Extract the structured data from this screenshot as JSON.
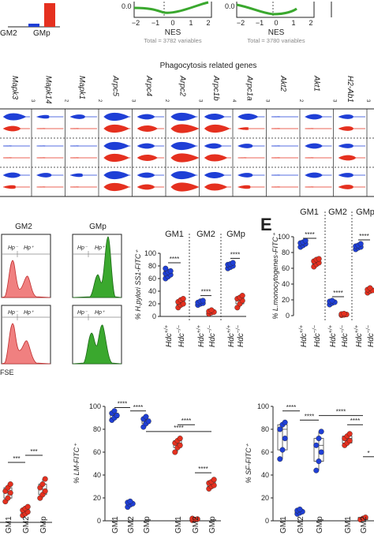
{
  "top": {
    "bar_labels": [
      "GM2",
      "GMp"
    ],
    "nes_panel_1": {
      "xlabel": "NES",
      "ticks": [
        "−2",
        "−1",
        "0",
        "1",
        "2"
      ],
      "ytick": "0.0",
      "total": "Total = 3782 variables"
    },
    "nes_panel_2": {
      "xlabel": "NES",
      "ticks": [
        "−2",
        "−1",
        "0",
        "1",
        "2"
      ],
      "ytick": "0.0",
      "total": "Total = 3780 variables"
    }
  },
  "violin": {
    "title": "Phagocytosis related genes",
    "genes": [
      "Mapk3",
      "Mapk14",
      "Mapk1",
      "Arpc5",
      "Arpc4",
      "Arpc2",
      "Arpc1b",
      "Arpc1a",
      "Akt2",
      "Akt1",
      "H2-Ab1"
    ],
    "scale_ticks": [
      "3",
      "2",
      "2",
      "3",
      "2",
      "3",
      "4",
      "3",
      "2",
      "3",
      "3"
    ]
  },
  "flow": {
    "headers": [
      "GM2",
      "GMp"
    ],
    "gate_neg": "Hp⁻",
    "gate_pos": "Hp⁺",
    "xlabel": "FSE"
  },
  "colors": {
    "blue": "#1f3fd6",
    "red": "#e5301f",
    "green": "#3aa82e",
    "salmon": "#f08080"
  },
  "chart_data": [
    {
      "type": "scatter",
      "panel": "D",
      "ylabel": "% H.pylori SS1-FITC⁺",
      "group_labels": [
        "GM1",
        "GM2",
        "GMp"
      ],
      "categories": [
        "Hdc+/+",
        "Hdc−/−",
        "Hdc+/+",
        "Hdc−/−",
        "Hdc+/+",
        "Hdc−/−"
      ],
      "xtick_base": "Hdc",
      "xtick_sup": [
        "+/+",
        "−/−",
        "+/+",
        "−/−",
        "+/+",
        "−/−"
      ],
      "ylim": [
        0,
        100
      ],
      "yticks": [
        "0",
        "20",
        "40",
        "60",
        "80",
        "100"
      ],
      "series": [
        {
          "values": [
            [
              60,
              63,
              66,
              68,
              70,
              72,
              76
            ],
            [
              14,
              18,
              20,
              23,
              26,
              28
            ],
            [
              18,
              20,
              21,
              22,
              24,
              25
            ],
            [
              4,
              6,
              7,
              8,
              10
            ],
            [
              76,
              78,
              80,
              82,
              83,
              85
            ],
            [
              14,
              20,
              25,
              28,
              30,
              33
            ]
          ]
        }
      ],
      "significance": [
        "****",
        "****",
        "****"
      ]
    },
    {
      "type": "scatter",
      "panel": "E",
      "panel_letter": "E",
      "ylabel": "% L.monocytogenes-FITC⁺",
      "group_labels": [
        "GM1",
        "GM2",
        "GMp"
      ],
      "xtick_base": "Hdc",
      "xtick_sup": [
        "+/+",
        "−/−",
        "+/+",
        "−/−",
        "+/+",
        "−/−"
      ],
      "ylim": [
        0,
        100
      ],
      "yticks": [
        "0",
        "20",
        "40",
        "60",
        "80",
        "100"
      ],
      "series": [
        {
          "values": [
            [
              87,
              89,
              91,
              92,
              93,
              95
            ],
            [
              62,
              65,
              67,
              69,
              71,
              72
            ],
            [
              14,
              16,
              17,
              18,
              19
            ],
            [
              0.5,
              1,
              1.5,
              2,
              2.5
            ],
            [
              84,
              86,
              87,
              88,
              89,
              91
            ],
            [
              29,
              31,
              32,
              33,
              35
            ]
          ]
        }
      ],
      "significance": [
        "****",
        "****",
        "****"
      ]
    },
    {
      "type": "scatter",
      "panel": "F1",
      "categories": [
        "GM1",
        "GM2",
        "GMp"
      ],
      "series": [
        {
          "values": [
            [
              12,
              14,
              17,
              18,
              20,
              22
            ],
            [
              4,
              5,
              6,
              7,
              8,
              9
            ],
            [
              14,
              16,
              18,
              20,
              22,
              25
            ]
          ]
        }
      ],
      "significance": [
        "***",
        "***"
      ]
    },
    {
      "type": "scatter",
      "panel": "F2",
      "ylabel": "% LM-FITC⁺",
      "categories": [
        "GM1",
        "GM2",
        "GMp",
        "GM1",
        "GM2",
        "GMp"
      ],
      "ylim": [
        0,
        100
      ],
      "yticks": [
        "0",
        "20",
        "40",
        "60",
        "80",
        "100"
      ],
      "series": [
        {
          "values": [
            [
              88,
              90,
              92,
              94,
              96
            ],
            [
              12,
              14,
              15,
              16,
              17
            ],
            [
              82,
              85,
              87,
              89,
              91
            ],
            [
              60,
              64,
              66,
              68,
              70,
              72
            ],
            [
              0.5,
              1,
              1.5,
              2
            ],
            [
              28,
              30,
              31,
              33,
              34,
              36
            ]
          ]
        }
      ],
      "significance": [
        "****",
        "****",
        "****",
        "****",
        "****"
      ]
    },
    {
      "type": "scatter",
      "panel": "F3",
      "ylabel": "% SF-FITC⁺",
      "categories": [
        "GM1",
        "GM2",
        "GMp",
        "GM1",
        "GM2"
      ],
      "ylim": [
        0,
        100
      ],
      "yticks": [
        "0",
        "20",
        "40",
        "60",
        "80",
        "100"
      ],
      "series": [
        {
          "values": [
            [
              54,
              62,
              72,
              80,
              84,
              86
            ],
            [
              6,
              7,
              8,
              9,
              10
            ],
            [
              44,
              52,
              60,
              66,
              72,
              78
            ],
            [
              66,
              68,
              70,
              72,
              74,
              76
            ],
            [
              1,
              2,
              3
            ]
          ]
        }
      ],
      "significance": [
        "****",
        "****",
        "****",
        "****",
        "*"
      ]
    }
  ]
}
